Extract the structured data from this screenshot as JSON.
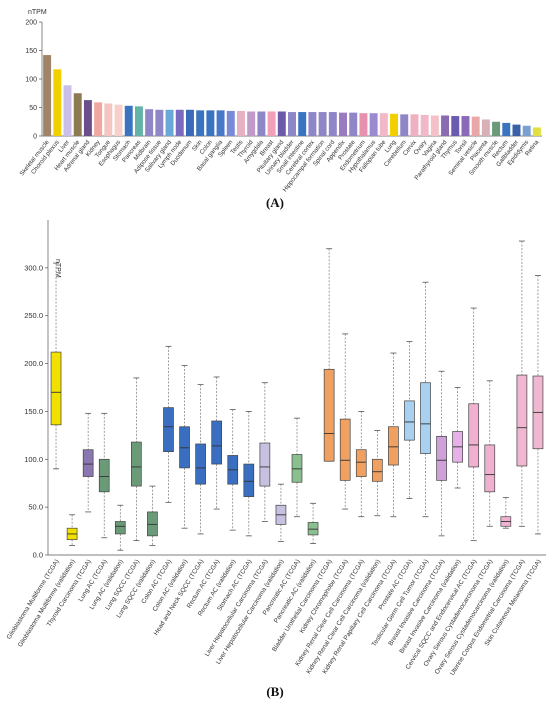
{
  "chart_data": [
    {
      "type": "bar",
      "ylabel": "nTPM",
      "ylim": [
        0,
        200
      ],
      "yticks": [
        0,
        50,
        100,
        150,
        200
      ],
      "categories": [
        "Skeletal muscle",
        "Choroid plexus",
        "Liver",
        "Heart muscle",
        "Adrenal gland",
        "Kidney",
        "Tongue",
        "Esophagus",
        "Stomach",
        "Pancreas",
        "Midbrain",
        "Adipose tissue",
        "Salivary gland",
        "Lymph node",
        "Duodenum",
        "Skin",
        "Colon",
        "Basal ganglia",
        "Spleen",
        "Testis",
        "Thyroid",
        "Amygdala",
        "Breast",
        "Pituitary gland",
        "Urinary bladder",
        "Small intestine",
        "Cerebral cortex",
        "Hippocampal formation",
        "Spinal cord",
        "Appendix",
        "Prostate",
        "Endometrium",
        "Hypothalamus",
        "Fallopian tube",
        "Lung",
        "Cerebellum",
        "Cervix",
        "Ovary",
        "Vagina",
        "Parathyroid gland",
        "Thymus",
        "Tonsil",
        "Seminal vesicle",
        "Placenta",
        "Smooth muscle",
        "Rectum",
        "Gallbladder",
        "Epididymis",
        "Retina"
      ],
      "values": [
        142,
        117,
        89,
        75,
        63,
        59,
        57,
        55,
        53,
        52,
        47,
        46,
        46,
        46,
        46,
        45,
        45,
        45,
        44,
        44,
        43,
        43,
        43,
        43,
        42,
        42,
        42,
        42,
        42,
        41,
        41,
        40,
        40,
        40,
        39,
        38,
        38,
        37,
        36,
        36,
        35,
        35,
        34,
        29,
        25,
        23,
        20,
        18,
        15
      ],
      "colors": [
        "#a0846a",
        "#f2d000",
        "#c9bfe8",
        "#8b7a52",
        "#6b4f8c",
        "#f0a7a0",
        "#f5c5c0",
        "#f7d0cc",
        "#3a74c0",
        "#64b3a8",
        "#8f86c8",
        "#8f86c8",
        "#6aa8d8",
        "#7a6ac0",
        "#3a6ab8",
        "#3a74c0",
        "#3a74c0",
        "#4a78c8",
        "#7a8ad8",
        "#e8b0c0",
        "#c09ac8",
        "#8f86c8",
        "#f0a0b8",
        "#6a5aa8",
        "#8f86c8",
        "#3a74c0",
        "#8f86c8",
        "#8f86c8",
        "#8f86c8",
        "#9a7ac0",
        "#8f86c8",
        "#e890b0",
        "#9a8ad0",
        "#f0b8c8",
        "#f2d000",
        "#8f86c8",
        "#f0b0c0",
        "#f0b8c8",
        "#f5c0c8",
        "#8a6ab0",
        "#6a5ab0",
        "#8a6ab8",
        "#e8a8a8",
        "#d8b0b8",
        "#6a9a78",
        "#3a74c0",
        "#3a60a8",
        "#7aa0d0",
        "#e0e040"
      ]
    },
    {
      "type": "box",
      "ylabel": "nTPM",
      "ylim": [
        0,
        350
      ],
      "yticks": [
        0.0,
        50.0,
        100.0,
        150.0,
        200.0,
        250.0,
        300.0
      ],
      "ytick_labels": [
        "0.0",
        "50.0",
        "100.0",
        "150.0",
        "200.0",
        "250.0",
        "300.0"
      ],
      "categories": [
        "Glioblastoma Multiforme (TCGA)",
        "Glioblastoma Multiforme (validation)",
        "Thyroid Carcinoma (TCGA)",
        "Lung AC (TCGA)",
        "Lung AC (validation)",
        "Lung SQCC (TCGA)",
        "Lung SQCC (validation)",
        "Colon AC (TCGA)",
        "Colon AC (validation)",
        "Head and Neck SQCC (TCGA)",
        "Rectum AC (TCGA)",
        "Rectum AC (validation)",
        "Stomach AC (TCGA)",
        "Liver Hepatocellular Carcinoma (TCGA)",
        "Liver Hepatocellular Carcinoma (validation)",
        "Pancreatic AC (TCGA)",
        "Pancreatic AC (validation)",
        "Bladder Urothelial Carcinoma (TCGA)",
        "Kidney Chromophobe (TCGA)",
        "Kidney Renal Clear Cell Carcinoma (TCGA)",
        "Kidney Renal Clear Cell Carcinoma (validation)",
        "Kidney Renal Papillary Cell Carcinoma (TCGA)",
        "Prostate AC (TCGA)",
        "Testicular Germ Cell Tumor (TCGA)",
        "Breast Invasive Carcinoma (TCGA)",
        "Breast Invasive Carcinoma (validation)",
        "Cervical SQCC and Endocervical AC (TCGA)",
        "Ovary Serous Cystadenocarcinoma (TCGA)",
        "Ovary Serous Cystadenocarcinoma (validation)",
        "Uterine Corpus Endometrial Carcinoma (TCGA)",
        "Skin Cutaneous Melanoma (TCGA)"
      ],
      "boxes": [
        {
          "min": 90,
          "q1": 136,
          "median": 170,
          "q3": 212,
          "max": 305,
          "color": "#f2e000"
        },
        {
          "min": 10,
          "q1": 16,
          "median": 22,
          "q3": 28,
          "max": 42,
          "color": "#f2e000"
        },
        {
          "min": 45,
          "q1": 82,
          "median": 95,
          "q3": 110,
          "max": 148,
          "color": "#8a76b0"
        },
        {
          "min": 18,
          "q1": 66,
          "median": 82,
          "q3": 100,
          "max": 148,
          "color": "#6a9a78"
        },
        {
          "min": 5,
          "q1": 22,
          "median": 30,
          "q3": 35,
          "max": 52,
          "color": "#6a9a78"
        },
        {
          "min": 15,
          "q1": 72,
          "median": 92,
          "q3": 118,
          "max": 185,
          "color": "#6a9a78"
        },
        {
          "min": 10,
          "q1": 20,
          "median": 32,
          "q3": 45,
          "max": 72,
          "color": "#6a9a78"
        },
        {
          "min": 55,
          "q1": 108,
          "median": 134,
          "q3": 154,
          "max": 218,
          "color": "#3a6ec0"
        },
        {
          "min": 28,
          "q1": 91,
          "median": 112,
          "q3": 134,
          "max": 198,
          "color": "#3a6ec0"
        },
        {
          "min": 22,
          "q1": 74,
          "median": 91,
          "q3": 116,
          "max": 178,
          "color": "#3a6ec0"
        },
        {
          "min": 48,
          "q1": 95,
          "median": 114,
          "q3": 140,
          "max": 186,
          "color": "#3a6ec0"
        },
        {
          "min": 26,
          "q1": 74,
          "median": 89,
          "q3": 104,
          "max": 152,
          "color": "#3a6ec0"
        },
        {
          "min": 20,
          "q1": 61,
          "median": 77,
          "q3": 95,
          "max": 150,
          "color": "#3a6ec0"
        },
        {
          "min": 35,
          "q1": 72,
          "median": 92,
          "q3": 117,
          "max": 180,
          "color": "#c8c0e0"
        },
        {
          "min": 14,
          "q1": 32,
          "median": 42,
          "q3": 52,
          "max": 74,
          "color": "#c8c0e0"
        },
        {
          "min": 40,
          "q1": 76,
          "median": 90,
          "q3": 105,
          "max": 143,
          "color": "#8abf90"
        },
        {
          "min": 12,
          "q1": 21,
          "median": 27,
          "q3": 34,
          "max": 54,
          "color": "#8abf90"
        },
        {
          "min": 98,
          "q1": 98,
          "median": 127,
          "q3": 194,
          "max": 320,
          "color": "#f0a060"
        },
        {
          "min": 48,
          "q1": 78,
          "median": 99,
          "q3": 142,
          "max": 231,
          "color": "#f0a060"
        },
        {
          "min": 40,
          "q1": 82,
          "median": 97,
          "q3": 110,
          "max": 150,
          "color": "#f0a060"
        },
        {
          "min": 41,
          "q1": 77,
          "median": 87,
          "q3": 100,
          "max": 130,
          "color": "#f0a060"
        },
        {
          "min": 40,
          "q1": 94,
          "median": 113,
          "q3": 134,
          "max": 211,
          "color": "#f0a060"
        },
        {
          "min": 59,
          "q1": 120,
          "median": 139,
          "q3": 161,
          "max": 223,
          "color": "#a8d0f0"
        },
        {
          "min": 40,
          "q1": 106,
          "median": 137,
          "q3": 180,
          "max": 285,
          "color": "#a8d0f0"
        },
        {
          "min": 20,
          "q1": 78,
          "median": 99,
          "q3": 124,
          "max": 192,
          "color": "#d0a0d8"
        },
        {
          "min": 70,
          "q1": 97,
          "median": 113,
          "q3": 129,
          "max": 175,
          "color": "#e8b0e8"
        },
        {
          "min": 15,
          "q1": 92,
          "median": 115,
          "q3": 158,
          "max": 258,
          "color": "#f0b0d0"
        },
        {
          "min": 30,
          "q1": 66,
          "median": 84,
          "q3": 115,
          "max": 182,
          "color": "#f0b0d0"
        },
        {
          "min": 28,
          "q1": 30,
          "median": 35,
          "q3": 40,
          "max": 60,
          "color": "#f0b0d0"
        },
        {
          "min": 30,
          "q1": 93,
          "median": 133,
          "q3": 188,
          "max": 328,
          "color": "#f0b8d0"
        },
        {
          "min": 22,
          "q1": 111,
          "median": 149,
          "q3": 187,
          "max": 292,
          "color": "#f0b8d0"
        }
      ]
    }
  ],
  "panel_labels": {
    "a": "(A)",
    "b": "(B)"
  }
}
